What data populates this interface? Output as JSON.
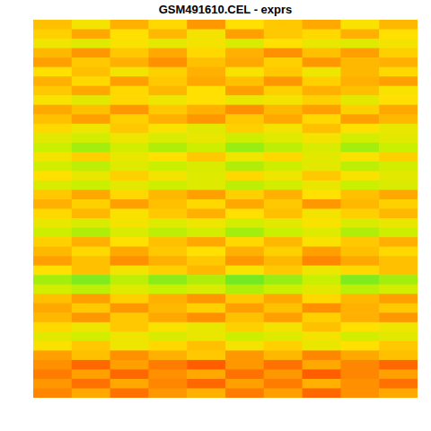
{
  "chart_data": {
    "type": "heatmap",
    "title": "GSM491610.CEL - exprs",
    "tick_labels": false,
    "xlim": [
      0,
      10
    ],
    "ylim": [
      0,
      40
    ],
    "color_range": [
      0.3,
      0.7
    ],
    "cells": [
      [
        0.46,
        0.52,
        0.44,
        0.49,
        0.41,
        0.5,
        0.47,
        0.43,
        0.51,
        0.45
      ],
      [
        0.48,
        0.43,
        0.5,
        0.45,
        0.52,
        0.42,
        0.47,
        0.49,
        0.44,
        0.5
      ],
      [
        0.53,
        0.56,
        0.51,
        0.55,
        0.52,
        0.57,
        0.5,
        0.54,
        0.56,
        0.52
      ],
      [
        0.45,
        0.41,
        0.47,
        0.43,
        0.49,
        0.44,
        0.4,
        0.46,
        0.42,
        0.48
      ],
      [
        0.42,
        0.47,
        0.44,
        0.4,
        0.46,
        0.43,
        0.48,
        0.41,
        0.45,
        0.44
      ],
      [
        0.5,
        0.46,
        0.52,
        0.48,
        0.44,
        0.51,
        0.47,
        0.53,
        0.45,
        0.49
      ],
      [
        0.44,
        0.49,
        0.42,
        0.47,
        0.43,
        0.46,
        0.41,
        0.48,
        0.44,
        0.42
      ],
      [
        0.47,
        0.43,
        0.49,
        0.45,
        0.5,
        0.42,
        0.48,
        0.44,
        0.46,
        0.51
      ],
      [
        0.51,
        0.55,
        0.49,
        0.53,
        0.5,
        0.54,
        0.52,
        0.48,
        0.55,
        0.5
      ],
      [
        0.43,
        0.46,
        0.41,
        0.47,
        0.44,
        0.4,
        0.45,
        0.42,
        0.48,
        0.43
      ],
      [
        0.46,
        0.42,
        0.48,
        0.44,
        0.41,
        0.47,
        0.43,
        0.49,
        0.42,
        0.45
      ],
      [
        0.49,
        0.53,
        0.47,
        0.51,
        0.55,
        0.48,
        0.52,
        0.46,
        0.5,
        0.54
      ],
      [
        0.55,
        0.58,
        0.53,
        0.57,
        0.54,
        0.59,
        0.56,
        0.52,
        0.58,
        0.55
      ],
      [
        0.6,
        0.63,
        0.58,
        0.62,
        0.59,
        0.64,
        0.61,
        0.57,
        0.63,
        0.6
      ],
      [
        0.52,
        0.48,
        0.54,
        0.5,
        0.47,
        0.53,
        0.49,
        0.55,
        0.51,
        0.48
      ],
      [
        0.58,
        0.61,
        0.56,
        0.6,
        0.57,
        0.62,
        0.59,
        0.55,
        0.61,
        0.58
      ],
      [
        0.5,
        0.54,
        0.48,
        0.52,
        0.56,
        0.49,
        0.53,
        0.47,
        0.51,
        0.55
      ],
      [
        0.57,
        0.6,
        0.55,
        0.59,
        0.56,
        0.61,
        0.58,
        0.54,
        0.6,
        0.57
      ],
      [
        0.47,
        0.43,
        0.49,
        0.45,
        0.42,
        0.48,
        0.44,
        0.5,
        0.46,
        0.43
      ],
      [
        0.44,
        0.48,
        0.42,
        0.46,
        0.49,
        0.43,
        0.47,
        0.41,
        0.45,
        0.48
      ],
      [
        0.49,
        0.45,
        0.51,
        0.47,
        0.44,
        0.5,
        0.46,
        0.52,
        0.48,
        0.45
      ],
      [
        0.54,
        0.57,
        0.52,
        0.56,
        0.53,
        0.58,
        0.55,
        0.51,
        0.57,
        0.54
      ],
      [
        0.59,
        0.62,
        0.57,
        0.61,
        0.58,
        0.63,
        0.6,
        0.56,
        0.62,
        0.59
      ],
      [
        0.48,
        0.44,
        0.5,
        0.46,
        0.43,
        0.49,
        0.45,
        0.51,
        0.47,
        0.44
      ],
      [
        0.45,
        0.49,
        0.43,
        0.47,
        0.5,
        0.44,
        0.48,
        0.42,
        0.46,
        0.49
      ],
      [
        0.42,
        0.46,
        0.4,
        0.44,
        0.47,
        0.41,
        0.45,
        0.39,
        0.43,
        0.46
      ],
      [
        0.5,
        0.46,
        0.52,
        0.48,
        0.45,
        0.51,
        0.47,
        0.53,
        0.49,
        0.46
      ],
      [
        0.63,
        0.66,
        0.61,
        0.65,
        0.62,
        0.67,
        0.64,
        0.6,
        0.66,
        0.63
      ],
      [
        0.58,
        0.61,
        0.56,
        0.6,
        0.57,
        0.62,
        0.59,
        0.55,
        0.61,
        0.58
      ],
      [
        0.46,
        0.42,
        0.48,
        0.44,
        0.41,
        0.47,
        0.43,
        0.49,
        0.45,
        0.42
      ],
      [
        0.43,
        0.47,
        0.41,
        0.45,
        0.48,
        0.42,
        0.46,
        0.4,
        0.44,
        0.47
      ],
      [
        0.45,
        0.41,
        0.47,
        0.43,
        0.4,
        0.46,
        0.42,
        0.48,
        0.44,
        0.41
      ],
      [
        0.49,
        0.53,
        0.47,
        0.51,
        0.54,
        0.48,
        0.52,
        0.46,
        0.5,
        0.53
      ],
      [
        0.55,
        0.58,
        0.53,
        0.57,
        0.54,
        0.59,
        0.56,
        0.52,
        0.58,
        0.55
      ],
      [
        0.51,
        0.47,
        0.53,
        0.49,
        0.46,
        0.52,
        0.48,
        0.54,
        0.5,
        0.47
      ],
      [
        0.42,
        0.46,
        0.4,
        0.44,
        0.47,
        0.41,
        0.45,
        0.39,
        0.43,
        0.46
      ],
      [
        0.4,
        0.36,
        0.42,
        0.38,
        0.35,
        0.41,
        0.37,
        0.43,
        0.39,
        0.36
      ],
      [
        0.38,
        0.42,
        0.36,
        0.4,
        0.43,
        0.37,
        0.41,
        0.35,
        0.39,
        0.42
      ],
      [
        0.41,
        0.37,
        0.43,
        0.39,
        0.36,
        0.42,
        0.38,
        0.44,
        0.4,
        0.37
      ],
      [
        0.39,
        0.43,
        0.37,
        0.41,
        0.44,
        0.38,
        0.42,
        0.36,
        0.4,
        0.43
      ]
    ]
  }
}
